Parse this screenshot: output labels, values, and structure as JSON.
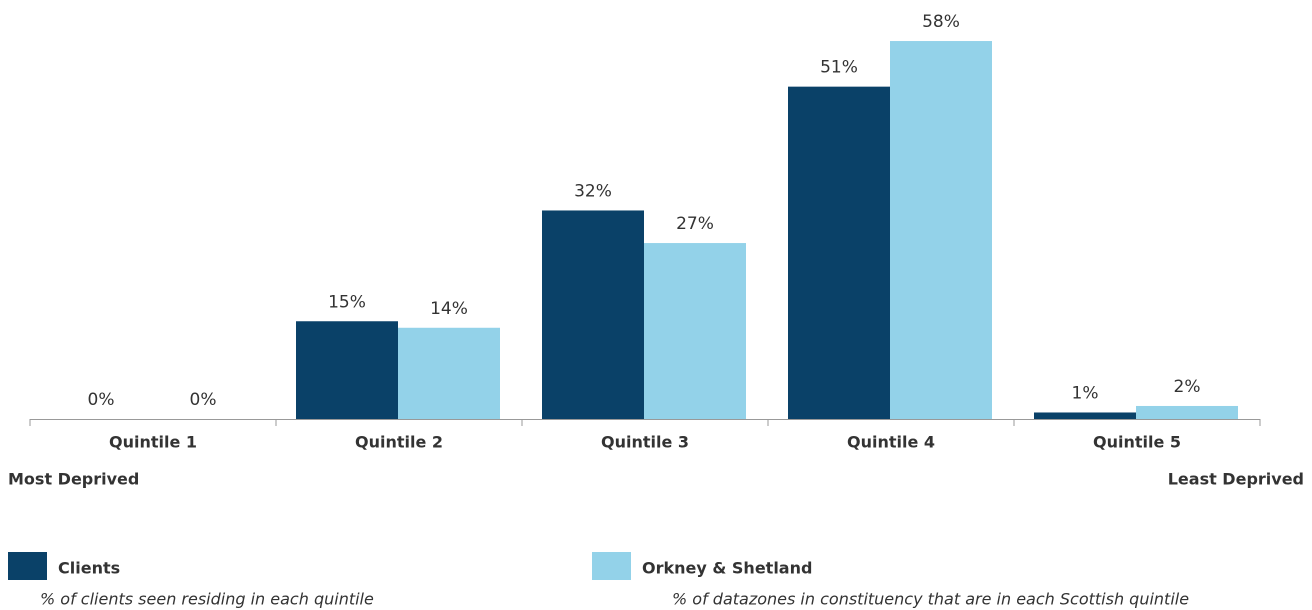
{
  "chart_data": {
    "type": "bar",
    "categories": [
      "Quintile 1",
      "Quintile 2",
      "Quintile 3",
      "Quintile 4",
      "Quintile 5"
    ],
    "series": [
      {
        "name": "Clients",
        "description": "% of clients seen residing in each quintile",
        "color": "#0a4168",
        "values": [
          0,
          15,
          32,
          51,
          1
        ],
        "value_labels": [
          "0%",
          "15%",
          "32%",
          "51%",
          "1%"
        ]
      },
      {
        "name": "Orkney & Shetland",
        "description": "% of datazones in constituency that are in each Scottish quintile",
        "color": "#93d2e9",
        "values": [
          0,
          14,
          27,
          58,
          2
        ],
        "value_labels": [
          "0%",
          "14%",
          "27%",
          "58%",
          "2%"
        ]
      }
    ],
    "axis_labels": {
      "left": "Most Deprived",
      "right": "Least Deprived"
    },
    "ylim": [
      0,
      60
    ]
  }
}
